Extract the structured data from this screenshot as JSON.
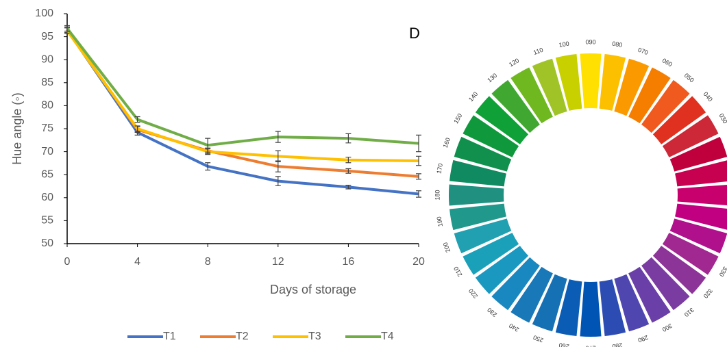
{
  "chart_data": {
    "type": "line",
    "annotation": "D",
    "x_label": "Days of storage",
    "y_label": "Hue angle (◦)",
    "x": [
      0,
      4,
      8,
      12,
      16,
      20
    ],
    "xlim": [
      0,
      20
    ],
    "xticks": [
      0,
      4,
      8,
      12,
      16,
      20
    ],
    "ylim": [
      50,
      100
    ],
    "yticks": [
      50,
      55,
      60,
      65,
      70,
      75,
      80,
      85,
      90,
      95,
      100
    ],
    "legend": "bottom",
    "series": [
      {
        "name": "T1",
        "color": "#4472c4",
        "values": [
          96.5,
          74.2,
          66.8,
          63.6,
          62.3,
          60.8
        ],
        "errors": [
          0.6,
          0.6,
          0.8,
          1.0,
          0.4,
          0.7
        ]
      },
      {
        "name": "T2",
        "color": "#ed7d31",
        "values": [
          96.5,
          74.8,
          70.2,
          66.8,
          65.8,
          64.6
        ],
        "errors": [
          0.6,
          0.6,
          0.6,
          1.2,
          0.5,
          0.6
        ]
      },
      {
        "name": "T3",
        "color": "#ffc000",
        "values": [
          96.3,
          75.0,
          70.0,
          69.0,
          68.2,
          68.0
        ],
        "errors": [
          0.6,
          0.6,
          0.6,
          1.2,
          0.6,
          1.0
        ]
      },
      {
        "name": "T4",
        "color": "#70ad47",
        "values": [
          96.8,
          77.0,
          71.4,
          73.2,
          72.9,
          71.8
        ],
        "errors": [
          0.6,
          0.6,
          1.5,
          1.2,
          1.0,
          1.8
        ]
      }
    ]
  },
  "hue_wheel": {
    "labels": [
      "030",
      "040",
      "050",
      "060",
      "070",
      "080",
      "090",
      "100",
      "110",
      "120",
      "130",
      "140",
      "150",
      "160",
      "170",
      "180",
      "190",
      "200",
      "210",
      "220",
      "230",
      "240",
      "250",
      "260",
      "270",
      "280",
      "290",
      "300",
      "310",
      "320",
      "330"
    ]
  }
}
